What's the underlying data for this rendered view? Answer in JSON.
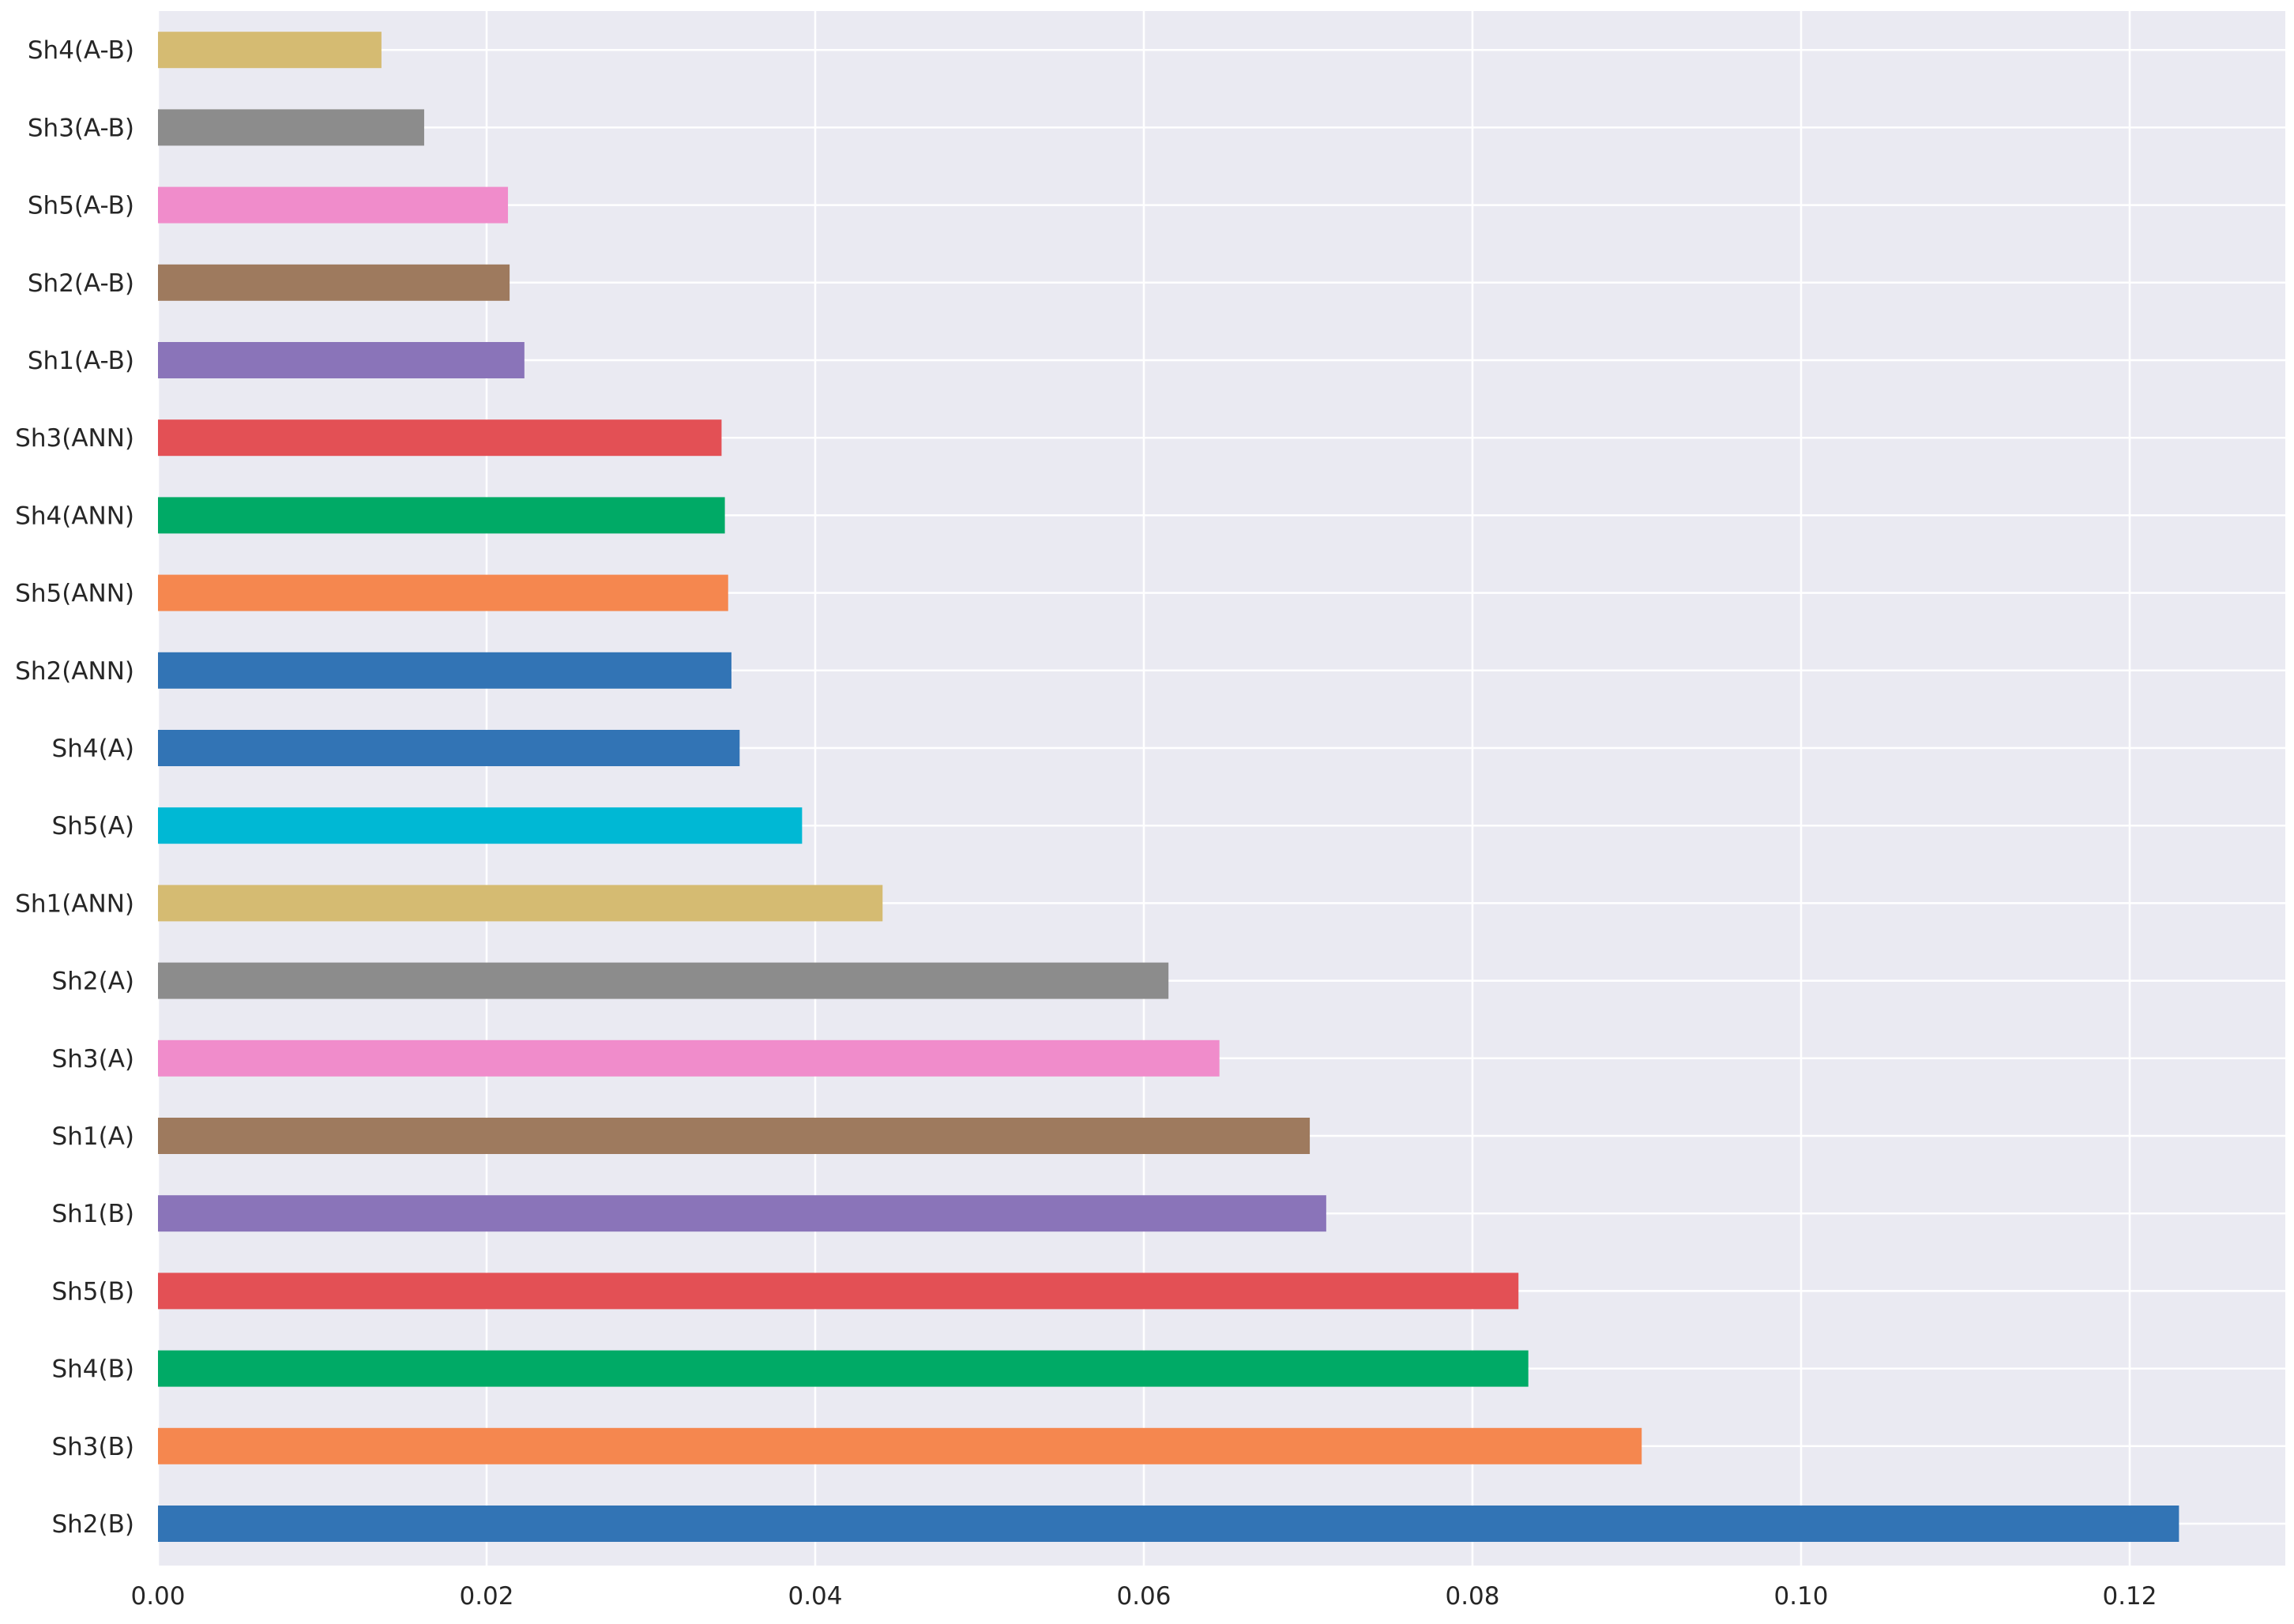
{
  "chart_data": {
    "type": "bar",
    "orientation": "horizontal",
    "title": "",
    "xlabel": "",
    "ylabel": "",
    "xlim": [
      0,
      0.129
    ],
    "grid": true,
    "xticks": [
      0.0,
      0.02,
      0.04,
      0.06,
      0.08,
      0.1,
      0.12
    ],
    "xtick_labels": [
      "0.00",
      "0.02",
      "0.04",
      "0.06",
      "0.08",
      "0.10",
      "0.12"
    ],
    "categories": [
      "Sh2(B)",
      "Sh3(B)",
      "Sh4(B)",
      "Sh5(B)",
      "Sh1(B)",
      "Sh1(A)",
      "Sh3(A)",
      "Sh2(A)",
      "Sh1(ANN)",
      "Sh5(A)",
      "Sh4(A)",
      "Sh2(ANN)",
      "Sh5(ANN)",
      "Sh4(ANN)",
      "Sh3(ANN)",
      "Sh1(A-B)",
      "Sh2(A-B)",
      "Sh5(A-B)",
      "Sh3(A-B)",
      "Sh4(A-B)"
    ],
    "values": [
      0.123,
      0.0903,
      0.0834,
      0.0828,
      0.0711,
      0.0701,
      0.0646,
      0.0615,
      0.0441,
      0.0392,
      0.0354,
      0.0349,
      0.0347,
      0.0345,
      0.0343,
      0.0223,
      0.0214,
      0.0213,
      0.0162,
      0.0136
    ],
    "colors": [
      "#3274b5",
      "#f5874f",
      "#00aa66",
      "#e35055",
      "#8a74b9",
      "#9e7a5e",
      "#f08ccb",
      "#8c8c8c",
      "#d5bb72",
      "#00b8d4",
      "#3274b5",
      "#3274b5",
      "#f5874f",
      "#00aa66",
      "#e35055",
      "#8a74b9",
      "#9e7a5e",
      "#f08ccb",
      "#8c8c8c",
      "#d5bb72"
    ],
    "background_color": "#eaeaf2",
    "grid_color": "#ffffff"
  }
}
